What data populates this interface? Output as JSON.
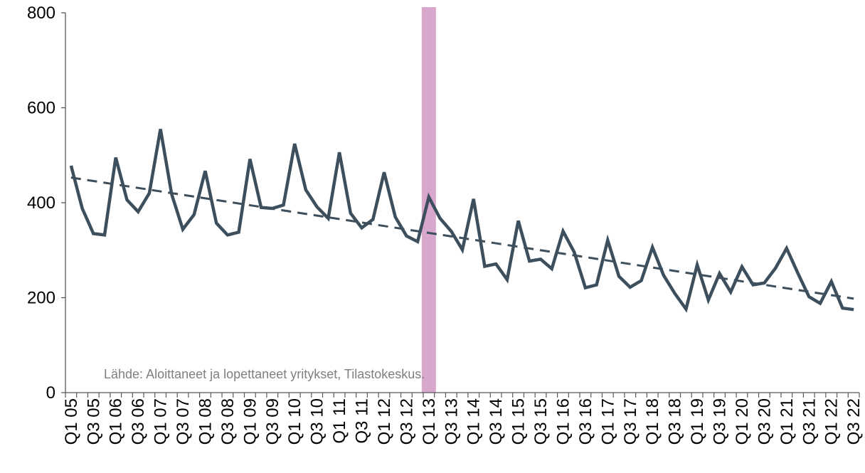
{
  "chart_data": {
    "type": "line",
    "title": "",
    "xlabel": "",
    "ylabel": "",
    "ylim": [
      0,
      800
    ],
    "yticks": [
      0,
      200,
      400,
      600,
      800
    ],
    "grid": false,
    "x": [
      "Q1 05",
      "Q2 05",
      "Q3 05",
      "Q4 05",
      "Q1 06",
      "Q2 06",
      "Q3 06",
      "Q4 06",
      "Q1 07",
      "Q2 07",
      "Q3 07",
      "Q4 07",
      "Q1 08",
      "Q2 08",
      "Q3 08",
      "Q4 08",
      "Q1 09",
      "Q2 09",
      "Q3 09",
      "Q4 09",
      "Q1 10",
      "Q2 10",
      "Q3 10",
      "Q4 10",
      "Q1 11",
      "Q2 11",
      "Q3 11",
      "Q4 11",
      "Q1 12",
      "Q2 12",
      "Q3 12",
      "Q4 12",
      "Q1 13",
      "Q2 13",
      "Q3 13",
      "Q4 13",
      "Q1 14",
      "Q2 14",
      "Q3 14",
      "Q4 14",
      "Q1 15",
      "Q2 15",
      "Q3 15",
      "Q4 15",
      "Q1 16",
      "Q2 16",
      "Q3 16",
      "Q4 16",
      "Q1 17",
      "Q2 17",
      "Q3 17",
      "Q4 17",
      "Q1 18",
      "Q2 18",
      "Q3 18",
      "Q4 18",
      "Q1 19",
      "Q2 19",
      "Q3 19",
      "Q4 19",
      "Q1 20",
      "Q2 20",
      "Q3 20",
      "Q4 20",
      "Q1 21",
      "Q2 21",
      "Q3 21",
      "Q4 21",
      "Q1 22",
      "Q2 22",
      "Q3 22"
    ],
    "x_tick_labels_shown": [
      "Q1 05",
      "Q3 05",
      "Q1 06",
      "Q3 06",
      "Q1 07",
      "Q3 07",
      "Q1 08",
      "Q3 08",
      "Q1 09",
      "Q3 09",
      "Q1 10",
      "Q3 10",
      "Q1 11",
      "Q3 11",
      "Q1 12",
      "Q3 12",
      "Q1 13",
      "Q3 13",
      "Q1 14",
      "Q3 14",
      "Q1 15",
      "Q3 15",
      "Q1 16",
      "Q3 16",
      "Q1 17",
      "Q3 17",
      "Q1 18",
      "Q3 18",
      "Q1 19",
      "Q3 19",
      "Q1 20",
      "Q3 20",
      "Q1 21",
      "Q3 21",
      "Q1 22",
      "Q3 22"
    ],
    "series": [
      {
        "name": "",
        "color": "#3d4f5c",
        "style": "solid",
        "values": [
          478,
          388,
          335,
          332,
          495,
          406,
          381,
          420,
          555,
          418,
          344,
          375,
          467,
          357,
          332,
          338,
          492,
          390,
          388,
          395,
          524,
          427,
          391,
          367,
          506,
          378,
          347,
          365,
          464,
          370,
          330,
          318,
          412,
          367,
          340,
          301,
          408,
          266,
          271,
          238,
          362,
          277,
          281,
          261,
          340,
          296,
          221,
          227,
          321,
          245,
          222,
          236,
          306,
          247,
          209,
          176,
          269,
          195,
          251,
          212,
          265,
          227,
          231,
          262,
          304,
          252,
          202,
          188,
          234,
          178,
          175
        ]
      },
      {
        "name": "",
        "color": "#3d4f5c",
        "style": "dashed",
        "type": "trend",
        "values_endpoints": [
          453,
          198
        ]
      }
    ],
    "highlight_band": {
      "category": "Q1 13",
      "color": "#d8a8cc"
    },
    "annotation": "Lähde: Aloittaneet ja lopettaneet yritykset, Tilastokeskus."
  }
}
